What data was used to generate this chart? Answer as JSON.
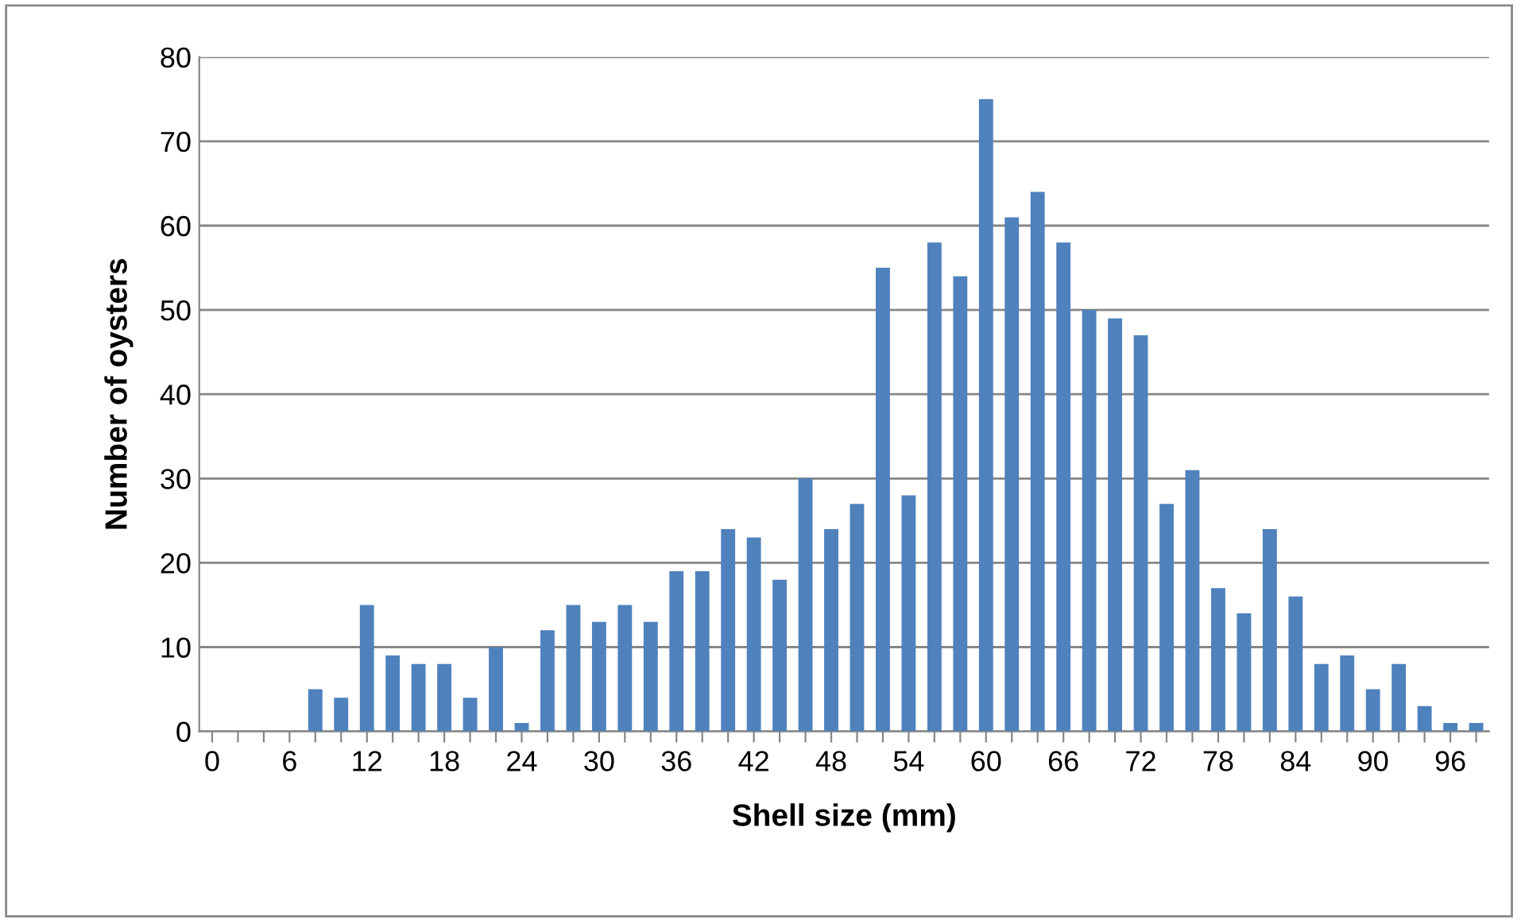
{
  "chart_data": {
    "type": "bar",
    "xlabel": "Shell size (mm)",
    "ylabel": "Number of oysters",
    "categories": [
      "0",
      null,
      null,
      "6",
      null,
      null,
      "12",
      null,
      null,
      "18",
      null,
      null,
      "24",
      null,
      null,
      "30",
      null,
      null,
      "36",
      null,
      null,
      "42",
      null,
      null,
      "48",
      null,
      null,
      "54",
      null,
      null,
      "60",
      null,
      null,
      "66",
      null,
      null,
      "72",
      null,
      null,
      "78",
      null,
      null,
      "84",
      null,
      null,
      "90",
      null,
      null,
      "96",
      null
    ],
    "values": [
      0,
      0,
      0,
      0,
      5,
      4,
      15,
      9,
      8,
      8,
      4,
      10,
      1,
      12,
      15,
      13,
      15,
      13,
      19,
      19,
      24,
      23,
      18,
      30,
      24,
      27,
      55,
      28,
      58,
      54,
      75,
      61,
      64,
      58,
      50,
      49,
      47,
      27,
      31,
      17,
      14,
      24,
      16,
      8,
      9,
      5,
      8,
      3,
      1,
      1
    ],
    "color": "#4f81bd",
    "ylim": [
      0,
      80
    ],
    "yticks": [
      0,
      10,
      20,
      30,
      40,
      50,
      60,
      70,
      80
    ],
    "grid": "y",
    "legend": false
  }
}
